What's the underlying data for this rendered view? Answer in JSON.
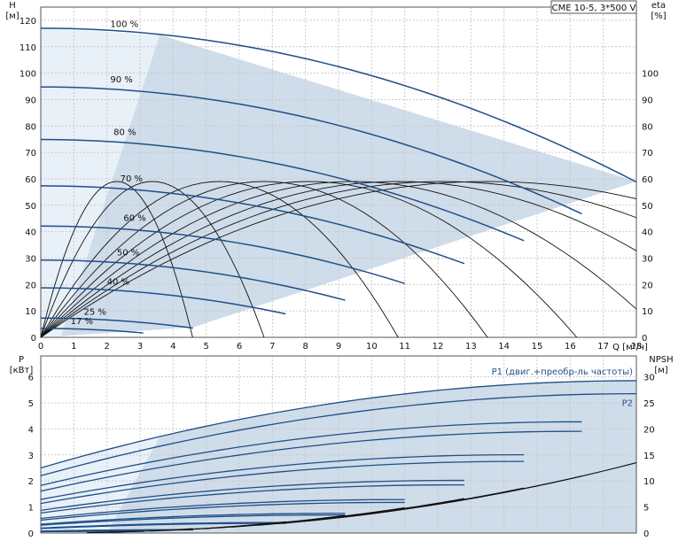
{
  "model_label": "CME 10-5, 3*500 V",
  "chart_data": [
    {
      "type": "line",
      "panel": "head",
      "ylabel_left": [
        "H",
        "[м]"
      ],
      "ylabel_right": [
        "eta",
        "[%]"
      ],
      "xlabel": "Q [м³/ч]",
      "xlim": [
        0,
        18
      ],
      "ylim": [
        0,
        125
      ],
      "x_ticks": [
        0,
        1,
        2,
        3,
        4,
        5,
        6,
        7,
        8,
        9,
        10,
        11,
        12,
        13,
        14,
        15,
        16,
        17,
        18
      ],
      "y_ticks_left": [
        0,
        10,
        20,
        30,
        40,
        50,
        60,
        70,
        80,
        90,
        100,
        110,
        120
      ],
      "y_ticks_right": [
        0,
        10,
        20,
        30,
        40,
        50,
        60,
        70,
        80,
        90,
        100
      ],
      "grid": true,
      "operating_region": {
        "x": [
          0,
          0,
          3.6,
          18,
          4.6,
          0
        ],
        "y": [
          0,
          117,
          114.5,
          59,
          3.8,
          0
        ]
      },
      "speed_curves": [
        {
          "label": "100 %",
          "speed": 1.0,
          "qmax": 18.0,
          "label_at": [
            2.1,
            116.5
          ]
        },
        {
          "label": "90 %",
          "speed": 0.9,
          "qmax": 16.35,
          "label_at": [
            2.1,
            95.5
          ]
        },
        {
          "label": "80 %",
          "speed": 0.8,
          "qmax": 14.6,
          "label_at": [
            2.2,
            75.5
          ]
        },
        {
          "label": "70 %",
          "speed": 0.7,
          "qmax": 12.8,
          "label_at": [
            2.4,
            58.0
          ]
        },
        {
          "label": "60 %",
          "speed": 0.6,
          "qmax": 11.0,
          "label_at": [
            2.5,
            43.0
          ]
        },
        {
          "label": "50 %",
          "speed": 0.5,
          "qmax": 9.2,
          "label_at": [
            2.3,
            30.0
          ]
        },
        {
          "label": "40 %",
          "speed": 0.4,
          "qmax": 7.4,
          "label_at": [
            2.0,
            19.0
          ]
        },
        {
          "label": "25 %",
          "speed": 0.25,
          "qmax": 4.6,
          "label_at": [
            1.3,
            7.6
          ]
        },
        {
          "label": "17 %",
          "speed": 0.17,
          "qmax": 3.1,
          "label_at": [
            0.9,
            4.0
          ]
        }
      ],
      "eta_curves": {
        "peak_eta": 59,
        "peak_q_at_full_speed": 13.5
      }
    },
    {
      "type": "line",
      "panel": "power",
      "ylabel_left": [
        "P",
        "[кВт]"
      ],
      "ylabel_right": [
        "NPSH",
        "[м]"
      ],
      "xlim": [
        0,
        18
      ],
      "ylim": [
        0,
        6.8
      ],
      "y2lim": [
        0,
        34
      ],
      "x_ticks": [
        0,
        1,
        2,
        3,
        4,
        5,
        6,
        7,
        8,
        9,
        10,
        11,
        12,
        13,
        14,
        15,
        16,
        17,
        18
      ],
      "y_ticks_left": [
        0,
        1,
        2,
        3,
        4,
        5,
        6
      ],
      "y_ticks_right": [
        0,
        5,
        10,
        15,
        20,
        25,
        30
      ],
      "grid": true,
      "series": [
        {
          "name": "P1 (двиг.+преобр-ль частоты)",
          "p0": 2.5,
          "pmax": 5.85,
          "qmax": 18.0
        },
        {
          "name": "P2",
          "p0": 2.2,
          "pmax": 5.35,
          "qmax": 18.0
        }
      ],
      "npsh": {
        "at_max_flow": 13.5
      }
    }
  ]
}
